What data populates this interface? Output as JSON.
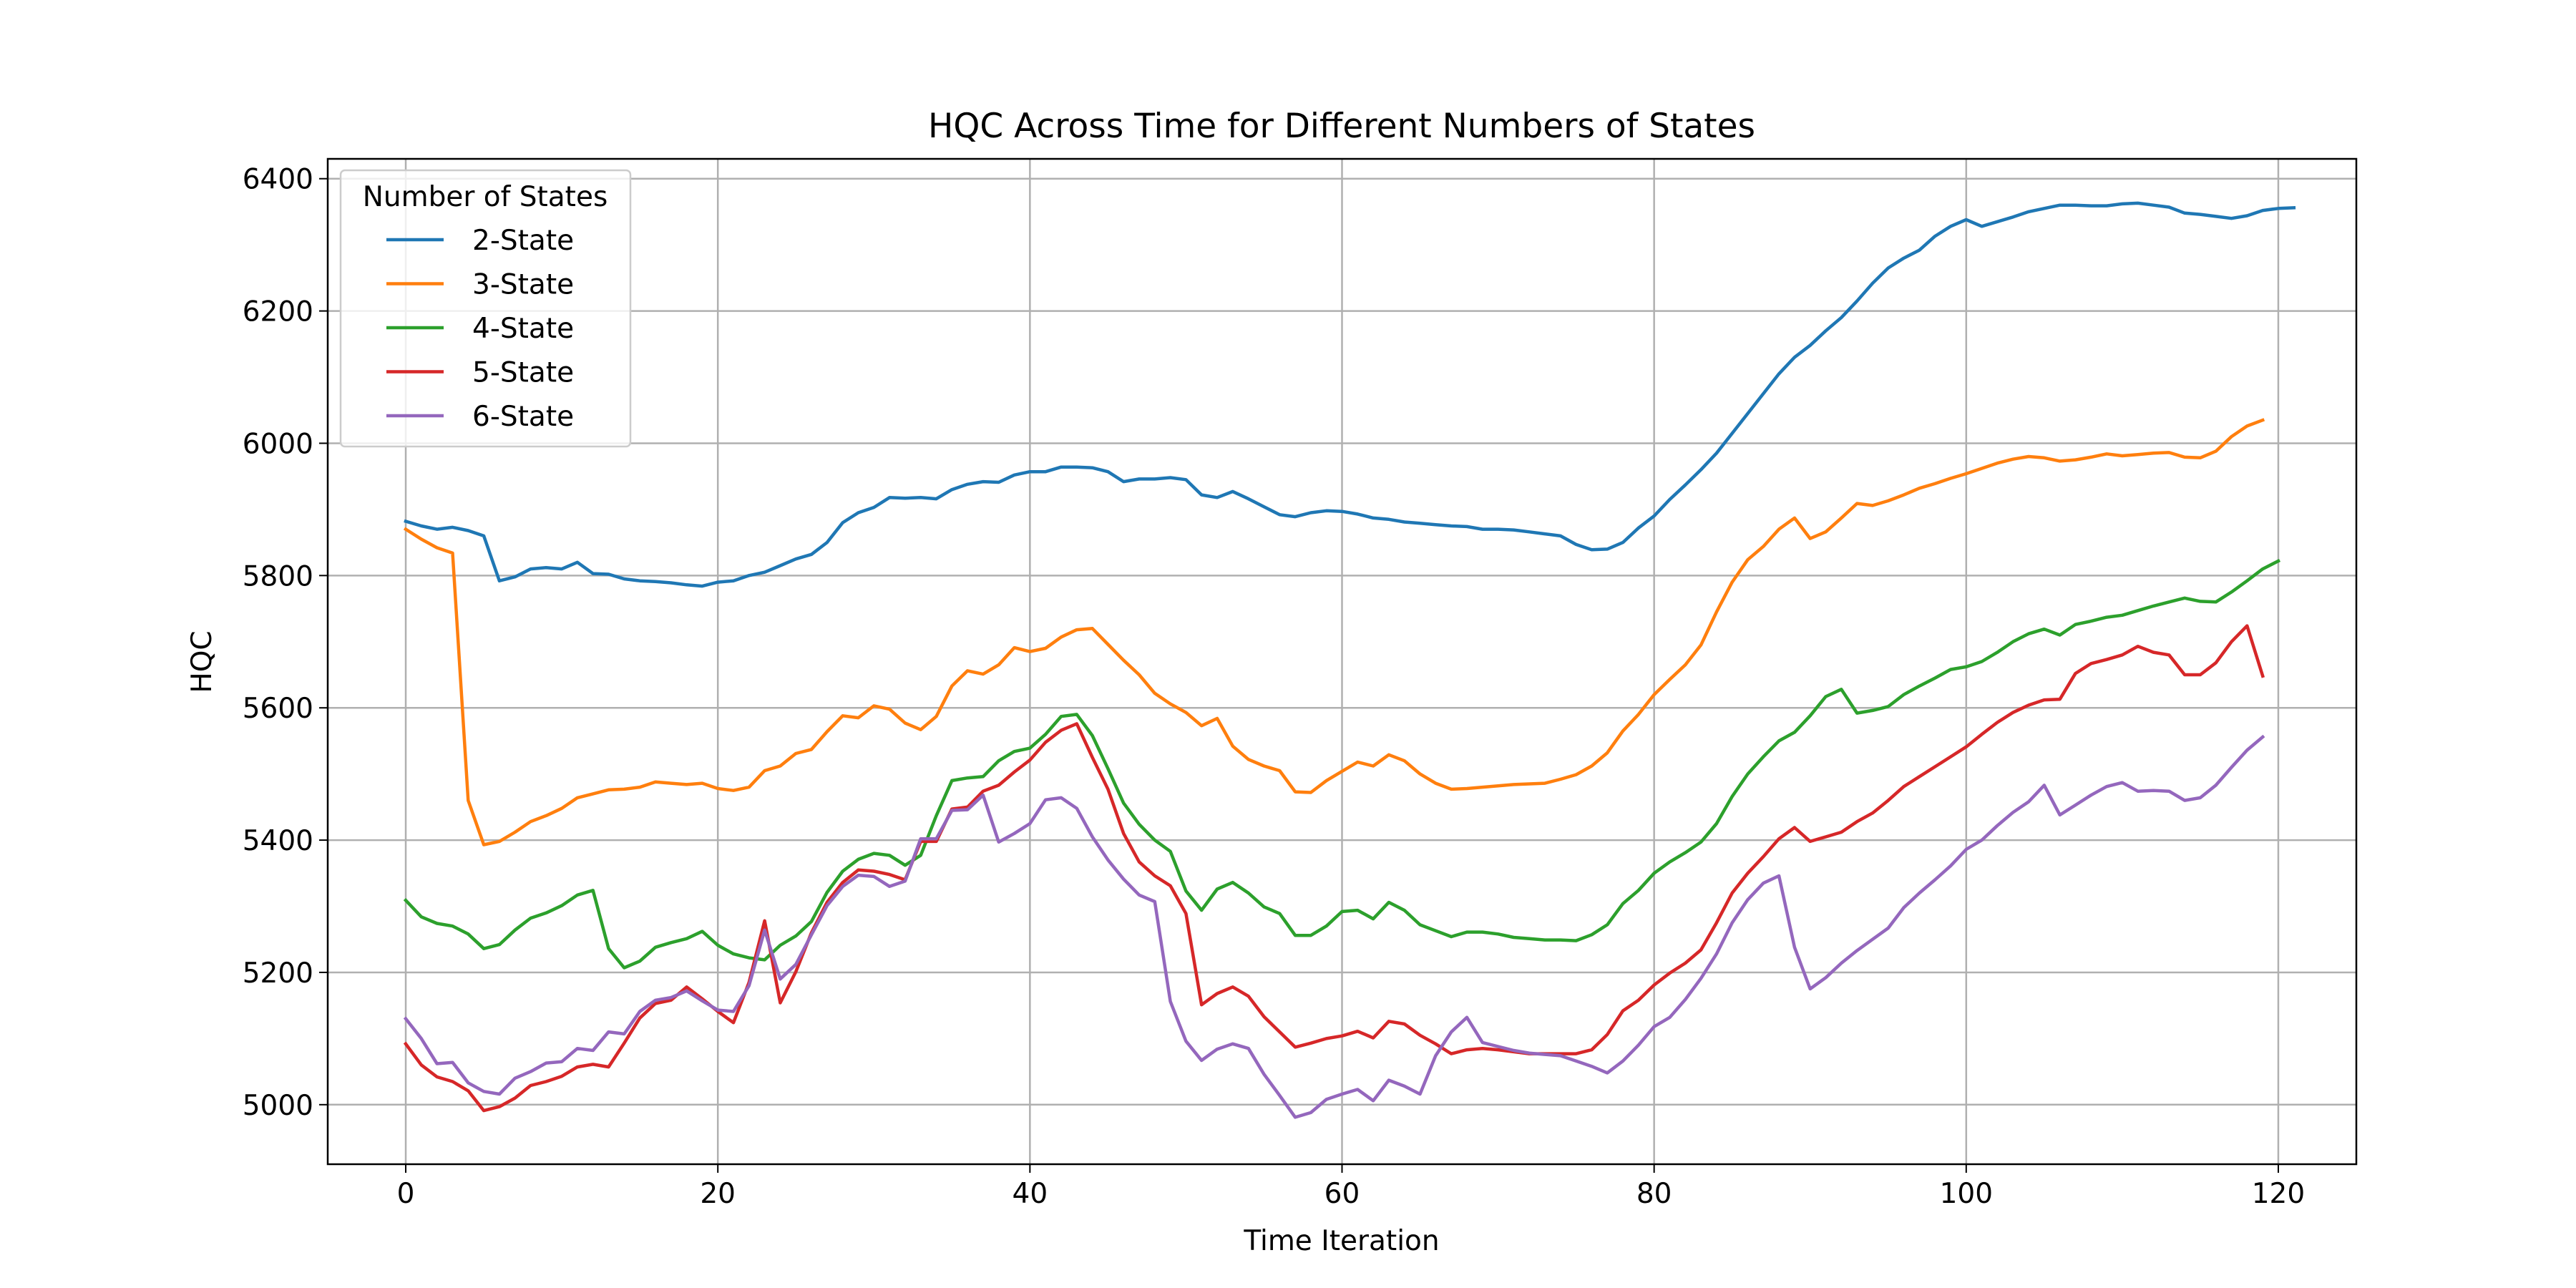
{
  "chart_data": {
    "type": "line",
    "title": "HQC Across Time for Different Numbers of States",
    "xlabel": "Time Iteration",
    "ylabel": "HQC",
    "xlim": [
      -5,
      125
    ],
    "ylim": [
      4910,
      6430
    ],
    "xticks": [
      0,
      20,
      40,
      60,
      80,
      100,
      120
    ],
    "yticks": [
      5000,
      5200,
      5400,
      5600,
      5800,
      6000,
      6200,
      6400
    ],
    "grid": true,
    "legend": {
      "title": "Number of States",
      "placement": "top-left"
    },
    "x_start": 0,
    "series": [
      {
        "name": "2-State",
        "color": "#1f77b4",
        "values": [
          5882,
          5875,
          5870,
          5873,
          5868,
          5860,
          5792,
          5798,
          5810,
          5812,
          5810,
          5820,
          5803,
          5802,
          5795,
          5792,
          5791,
          5789,
          5786,
          5784,
          5790,
          5792,
          5800,
          5805,
          5815,
          5825,
          5832,
          5850,
          5880,
          5895,
          5903,
          5918,
          5917,
          5918,
          5916,
          5930,
          5938,
          5942,
          5941,
          5952,
          5957,
          5957,
          5964,
          5964,
          5963,
          5957,
          5942,
          5946,
          5946,
          5948,
          5945,
          5922,
          5918,
          5927,
          5916,
          5904,
          5892,
          5889,
          5895,
          5898,
          5897,
          5893,
          5887,
          5885,
          5881,
          5879,
          5877,
          5875,
          5874,
          5870,
          5870,
          5869,
          5866,
          5863,
          5860,
          5847,
          5839,
          5840,
          5850,
          5872,
          5890,
          5915,
          5937,
          5960,
          5985,
          6015,
          6045,
          6075,
          6105,
          6130,
          6148,
          6170,
          6190,
          6215,
          6242,
          6265,
          6280,
          6292,
          6313,
          6328,
          6338,
          6328,
          6335,
          6342,
          6350,
          6355,
          6360,
          6360,
          6359,
          6359,
          6362,
          6363,
          6360,
          6357,
          6348,
          6346,
          6343,
          6340,
          6344,
          6352,
          6355,
          6356
        ]
      },
      {
        "name": "3-State",
        "color": "#ff7f0e",
        "values": [
          5870,
          5855,
          5842,
          5834,
          5460,
          5393,
          5398,
          5412,
          5428,
          5437,
          5448,
          5464,
          5470,
          5476,
          5477,
          5480,
          5488,
          5486,
          5484,
          5486,
          5478,
          5475,
          5480,
          5505,
          5512,
          5531,
          5537,
          5564,
          5588,
          5585,
          5603,
          5598,
          5577,
          5567,
          5587,
          5633,
          5656,
          5651,
          5665,
          5691,
          5685,
          5690,
          5707,
          5718,
          5720,
          5696,
          5672,
          5650,
          5622,
          5606,
          5593,
          5573,
          5584,
          5542,
          5522,
          5512,
          5505,
          5473,
          5472,
          5490,
          5504,
          5518,
          5512,
          5529,
          5520,
          5500,
          5486,
          5477,
          5478,
          5480,
          5482,
          5484,
          5485,
          5486,
          5492,
          5499,
          5512,
          5532,
          5565,
          5590,
          5620,
          5643,
          5665,
          5695,
          5745,
          5790,
          5824,
          5844,
          5870,
          5887,
          5856,
          5866,
          5887,
          5909,
          5906,
          5913,
          5922,
          5932,
          5939,
          5947,
          5954,
          5962,
          5970,
          5976,
          5980,
          5978,
          5973,
          5975,
          5979,
          5984,
          5981,
          5983,
          5985,
          5986,
          5979,
          5978,
          5988,
          6010,
          6026,
          6035
        ]
      },
      {
        "name": "4-State",
        "color": "#2ca02c",
        "values": [
          5309,
          5284,
          5274,
          5270,
          5258,
          5236,
          5242,
          5264,
          5282,
          5290,
          5301,
          5317,
          5324,
          5236,
          5207,
          5217,
          5238,
          5245,
          5251,
          5262,
          5241,
          5228,
          5222,
          5219,
          5241,
          5255,
          5277,
          5321,
          5353,
          5371,
          5380,
          5377,
          5362,
          5377,
          5437,
          5490,
          5494,
          5496,
          5520,
          5534,
          5539,
          5560,
          5587,
          5590,
          5558,
          5508,
          5456,
          5424,
          5400,
          5383,
          5323,
          5294,
          5326,
          5336,
          5320,
          5299,
          5289,
          5256,
          5256,
          5270,
          5292,
          5294,
          5281,
          5306,
          5294,
          5272,
          5263,
          5254,
          5261,
          5261,
          5258,
          5253,
          5251,
          5249,
          5249,
          5248,
          5257,
          5272,
          5304,
          5324,
          5350,
          5367,
          5381,
          5397,
          5425,
          5466,
          5500,
          5526,
          5550,
          5563,
          5588,
          5617,
          5628,
          5592,
          5596,
          5602,
          5620,
          5633,
          5645,
          5658,
          5662,
          5670,
          5684,
          5700,
          5712,
          5719,
          5710,
          5726,
          5731,
          5737,
          5740,
          5747,
          5754,
          5760,
          5766,
          5761,
          5760,
          5775,
          5792,
          5810,
          5822
        ]
      },
      {
        "name": "5-State",
        "color": "#d62728",
        "values": [
          5092,
          5060,
          5042,
          5035,
          5021,
          4991,
          4997,
          5010,
          5029,
          5035,
          5043,
          5057,
          5061,
          5057,
          5093,
          5131,
          5153,
          5158,
          5178,
          5160,
          5141,
          5124,
          5185,
          5278,
          5154,
          5201,
          5260,
          5306,
          5336,
          5355,
          5353,
          5348,
          5340,
          5398,
          5398,
          5447,
          5450,
          5474,
          5483,
          5503,
          5521,
          5548,
          5566,
          5576,
          5525,
          5477,
          5410,
          5367,
          5346,
          5331,
          5289,
          5151,
          5168,
          5178,
          5164,
          5133,
          5110,
          5087,
          5093,
          5100,
          5104,
          5111,
          5101,
          5126,
          5122,
          5105,
          5092,
          5077,
          5083,
          5085,
          5083,
          5080,
          5077,
          5077,
          5077,
          5077,
          5083,
          5106,
          5142,
          5158,
          5181,
          5199,
          5214,
          5234,
          5275,
          5320,
          5350,
          5375,
          5402,
          5419,
          5398,
          5405,
          5412,
          5428,
          5441,
          5460,
          5481,
          5496,
          5511,
          5526,
          5541,
          5560,
          5578,
          5593,
          5604,
          5612,
          5613,
          5652,
          5667,
          5673,
          5680,
          5693,
          5684,
          5680,
          5650,
          5650,
          5668,
          5700,
          5724,
          5648
        ]
      },
      {
        "name": "6-State",
        "color": "#9467bd",
        "values": [
          5130,
          5100,
          5062,
          5064,
          5033,
          5020,
          5016,
          5040,
          5050,
          5063,
          5065,
          5085,
          5082,
          5110,
          5107,
          5141,
          5158,
          5162,
          5172,
          5157,
          5143,
          5141,
          5180,
          5264,
          5190,
          5212,
          5257,
          5301,
          5330,
          5347,
          5345,
          5330,
          5338,
          5402,
          5402,
          5445,
          5446,
          5468,
          5397,
          5410,
          5425,
          5461,
          5464,
          5448,
          5405,
          5370,
          5341,
          5317,
          5307,
          5156,
          5096,
          5067,
          5084,
          5092,
          5085,
          5046,
          5014,
          4981,
          4988,
          5008,
          5016,
          5023,
          5006,
          5037,
          5028,
          5016,
          5074,
          5110,
          5132,
          5094,
          5088,
          5082,
          5078,
          5076,
          5074,
          5066,
          5058,
          5048,
          5066,
          5090,
          5118,
          5132,
          5159,
          5191,
          5228,
          5275,
          5310,
          5335,
          5346,
          5238,
          5175,
          5192,
          5214,
          5233,
          5250,
          5267,
          5298,
          5320,
          5340,
          5361,
          5386,
          5400,
          5422,
          5442,
          5458,
          5483,
          5438,
          5453,
          5468,
          5481,
          5487,
          5474,
          5475,
          5474,
          5460,
          5464,
          5483,
          5510,
          5536,
          5556
        ]
      }
    ]
  }
}
